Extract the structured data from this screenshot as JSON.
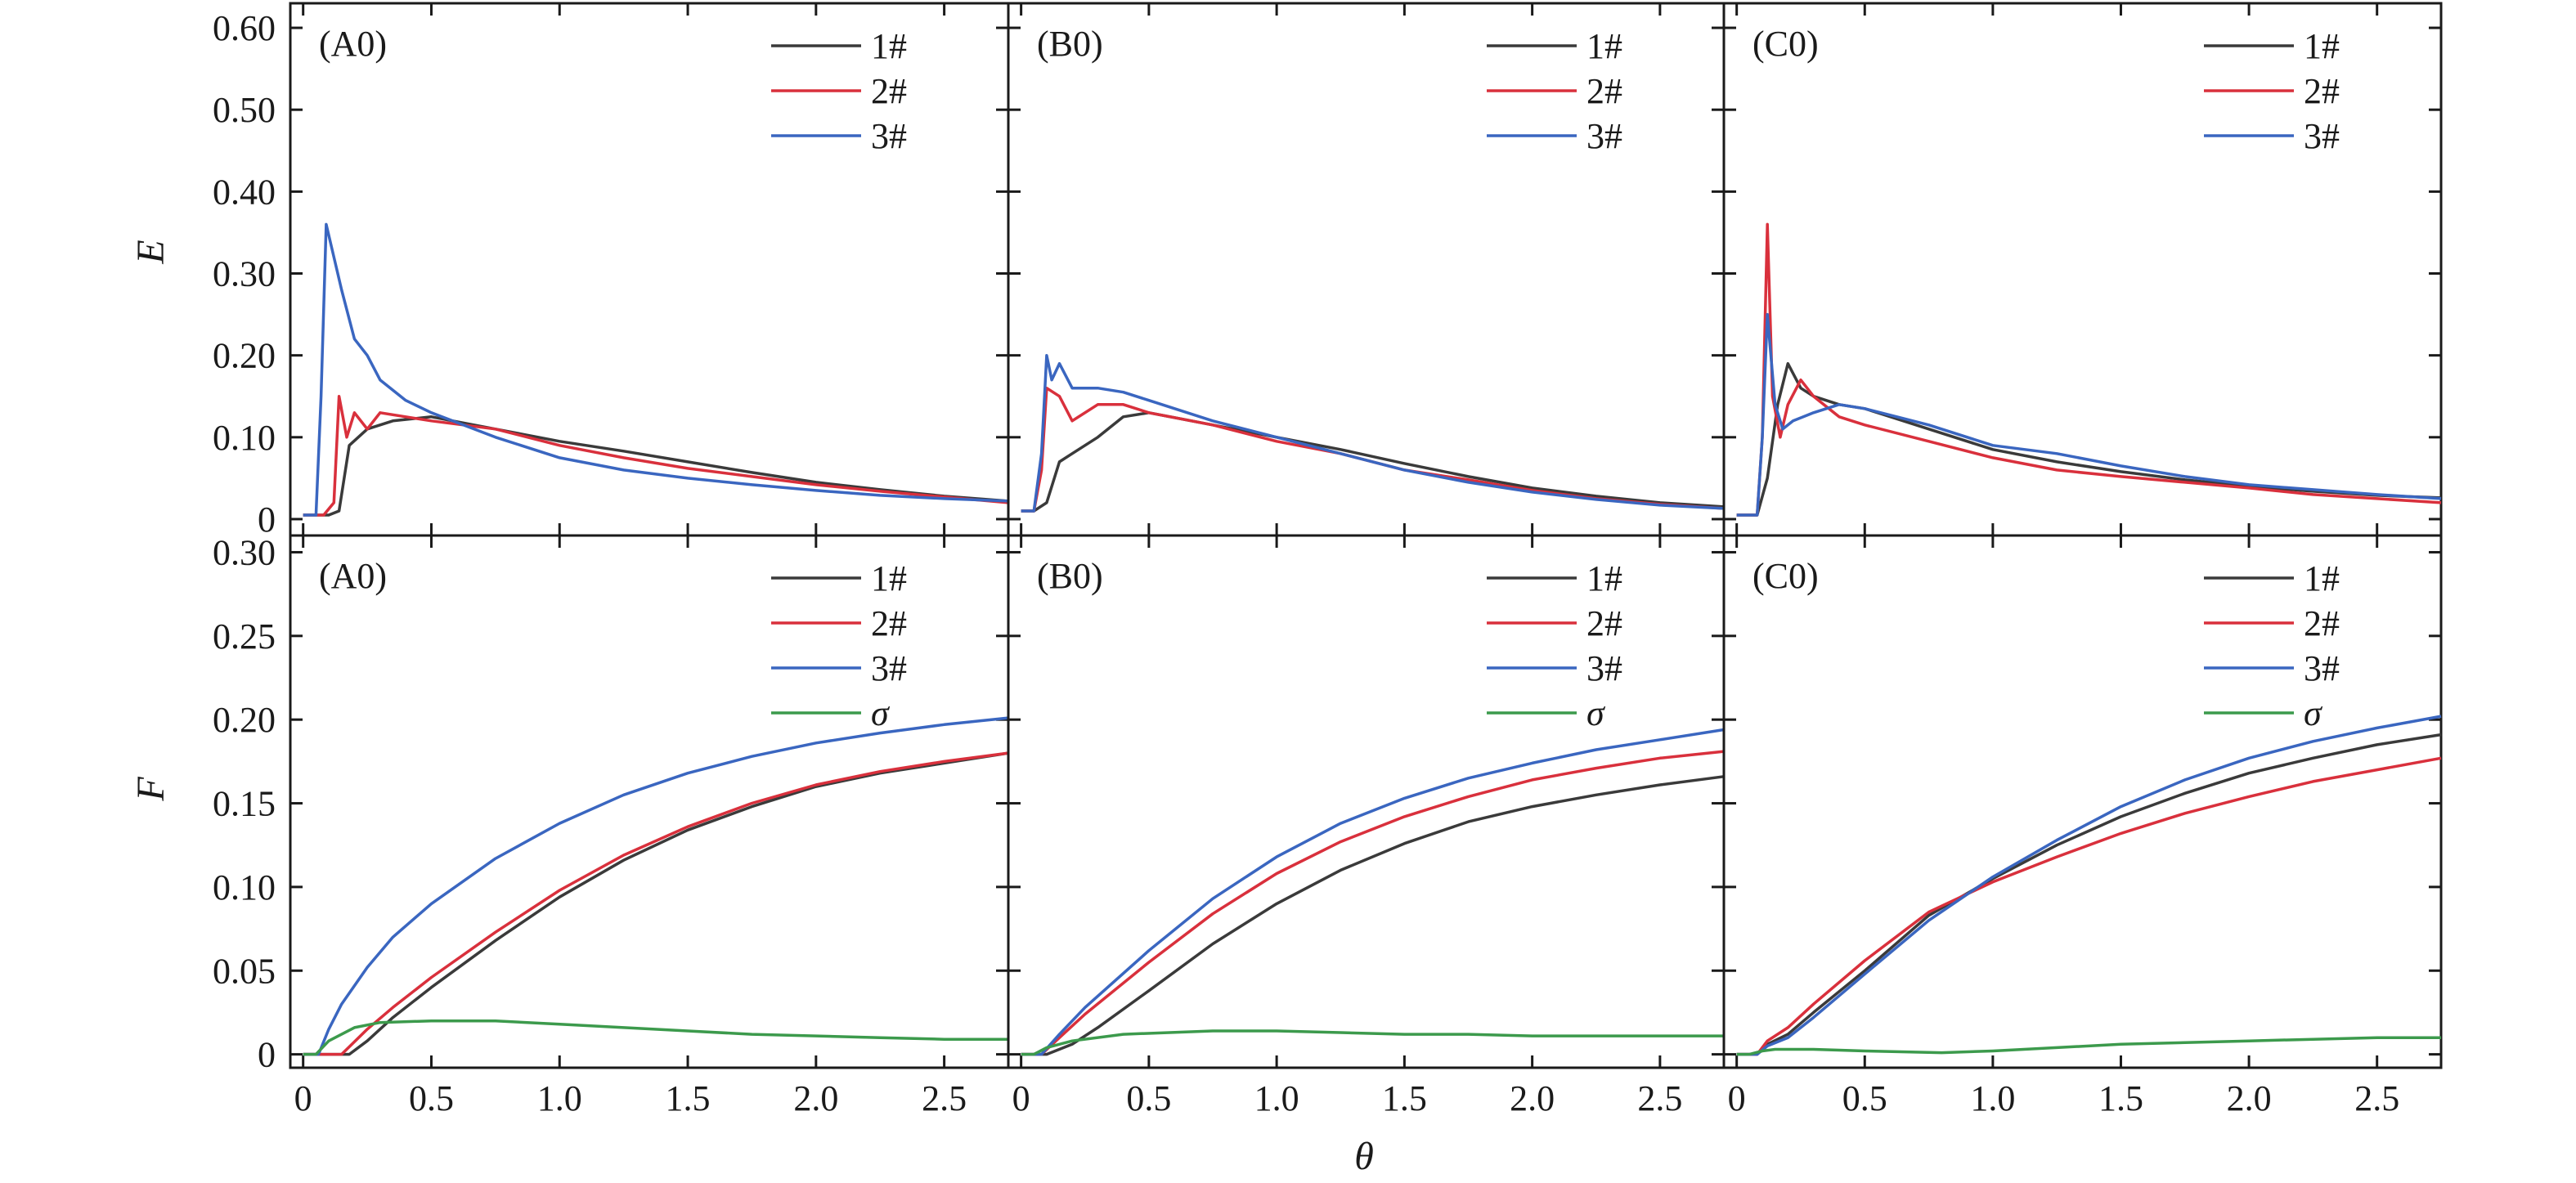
{
  "figure": {
    "xlabel": "θ",
    "row_ylabels": [
      "E",
      "F"
    ]
  },
  "chart_data": [
    {
      "type": "line",
      "panel_label": "(A0)",
      "xlabel": "",
      "ylabel": "E",
      "xlim": [
        -0.05,
        2.75
      ],
      "ylim": [
        -0.02,
        0.63
      ],
      "xticks": [
        0,
        0.5,
        1.0,
        1.5,
        2.0,
        2.5
      ],
      "yticks": [
        0,
        0.1,
        0.2,
        0.3,
        0.4,
        0.5,
        0.6
      ],
      "ytick_labels": [
        "0",
        "0.10",
        "0.20",
        "0.30",
        "0.40",
        "0.50",
        "0.60"
      ],
      "legend_position": "top-right",
      "series": [
        {
          "name": "1#",
          "color": "#3a3a3a",
          "x": [
            0,
            0.1,
            0.14,
            0.18,
            0.25,
            0.35,
            0.5,
            0.75,
            1.0,
            1.25,
            1.5,
            1.75,
            2.0,
            2.25,
            2.5,
            2.75
          ],
          "y": [
            0.005,
            0.005,
            0.01,
            0.09,
            0.11,
            0.12,
            0.125,
            0.11,
            0.095,
            0.083,
            0.07,
            0.057,
            0.045,
            0.036,
            0.028,
            0.022
          ]
        },
        {
          "name": "2#",
          "color": "#d9303c",
          "x": [
            0,
            0.08,
            0.12,
            0.14,
            0.17,
            0.2,
            0.25,
            0.3,
            0.4,
            0.5,
            0.75,
            1.0,
            1.25,
            1.5,
            1.75,
            2.0,
            2.25,
            2.5,
            2.75
          ],
          "y": [
            0.005,
            0.005,
            0.02,
            0.15,
            0.1,
            0.13,
            0.11,
            0.13,
            0.125,
            0.12,
            0.11,
            0.09,
            0.075,
            0.062,
            0.052,
            0.042,
            0.034,
            0.027,
            0.02
          ]
        },
        {
          "name": "3#",
          "color": "#3a66c0",
          "x": [
            0,
            0.05,
            0.07,
            0.09,
            0.12,
            0.15,
            0.2,
            0.25,
            0.3,
            0.4,
            0.5,
            0.75,
            1.0,
            1.25,
            1.5,
            1.75,
            2.0,
            2.25,
            2.5,
            2.75
          ],
          "y": [
            0.005,
            0.005,
            0.15,
            0.36,
            0.32,
            0.28,
            0.22,
            0.2,
            0.17,
            0.145,
            0.13,
            0.1,
            0.075,
            0.06,
            0.05,
            0.042,
            0.035,
            0.029,
            0.025,
            0.022
          ]
        }
      ]
    },
    {
      "type": "line",
      "panel_label": "(B0)",
      "xlabel": "",
      "ylabel": "",
      "xlim": [
        -0.05,
        2.75
      ],
      "ylim": [
        -0.02,
        0.63
      ],
      "xticks": [
        0,
        0.5,
        1.0,
        1.5,
        2.0,
        2.5
      ],
      "legend_position": "top-right",
      "series": [
        {
          "name": "1#",
          "color": "#3a3a3a",
          "x": [
            0,
            0.05,
            0.1,
            0.15,
            0.2,
            0.3,
            0.4,
            0.5,
            0.75,
            1.0,
            1.25,
            1.5,
            1.75,
            2.0,
            2.25,
            2.5,
            2.75
          ],
          "y": [
            0.01,
            0.01,
            0.02,
            0.07,
            0.08,
            0.1,
            0.125,
            0.13,
            0.115,
            0.1,
            0.085,
            0.068,
            0.052,
            0.038,
            0.028,
            0.02,
            0.015
          ]
        },
        {
          "name": "2#",
          "color": "#d9303c",
          "x": [
            0,
            0.05,
            0.08,
            0.1,
            0.15,
            0.2,
            0.3,
            0.4,
            0.5,
            0.75,
            1.0,
            1.25,
            1.5,
            1.75,
            2.0,
            2.25,
            2.5,
            2.75
          ],
          "y": [
            0.01,
            0.01,
            0.06,
            0.16,
            0.15,
            0.12,
            0.14,
            0.14,
            0.13,
            0.115,
            0.095,
            0.08,
            0.06,
            0.048,
            0.035,
            0.025,
            0.018,
            0.013
          ]
        },
        {
          "name": "3#",
          "color": "#3a66c0",
          "x": [
            0,
            0.05,
            0.08,
            0.1,
            0.12,
            0.15,
            0.2,
            0.3,
            0.4,
            0.5,
            0.75,
            1.0,
            1.25,
            1.5,
            1.75,
            2.0,
            2.25,
            2.5,
            2.75
          ],
          "y": [
            0.01,
            0.01,
            0.08,
            0.2,
            0.17,
            0.19,
            0.16,
            0.16,
            0.155,
            0.145,
            0.12,
            0.1,
            0.08,
            0.06,
            0.045,
            0.033,
            0.024,
            0.017,
            0.013
          ]
        }
      ]
    },
    {
      "type": "line",
      "panel_label": "(C0)",
      "xlabel": "",
      "ylabel": "",
      "xlim": [
        -0.05,
        2.75
      ],
      "ylim": [
        -0.02,
        0.63
      ],
      "xticks": [
        0,
        0.5,
        1.0,
        1.5,
        2.0,
        2.5
      ],
      "legend_position": "top-right",
      "series": [
        {
          "name": "1#",
          "color": "#3a3a3a",
          "x": [
            0,
            0.08,
            0.12,
            0.16,
            0.2,
            0.25,
            0.3,
            0.4,
            0.5,
            0.75,
            1.0,
            1.25,
            1.5,
            1.75,
            2.0,
            2.25,
            2.5,
            2.75
          ],
          "y": [
            0.005,
            0.005,
            0.05,
            0.14,
            0.19,
            0.16,
            0.15,
            0.14,
            0.135,
            0.11,
            0.085,
            0.07,
            0.058,
            0.048,
            0.04,
            0.034,
            0.029,
            0.026
          ]
        },
        {
          "name": "2#",
          "color": "#d9303c",
          "x": [
            0,
            0.08,
            0.1,
            0.12,
            0.14,
            0.17,
            0.2,
            0.25,
            0.3,
            0.4,
            0.5,
            0.75,
            1.0,
            1.25,
            1.5,
            1.75,
            2.0,
            2.25,
            2.5,
            2.75
          ],
          "y": [
            0.005,
            0.005,
            0.1,
            0.36,
            0.15,
            0.1,
            0.14,
            0.17,
            0.15,
            0.125,
            0.115,
            0.095,
            0.075,
            0.06,
            0.052,
            0.045,
            0.038,
            0.03,
            0.025,
            0.02
          ]
        },
        {
          "name": "3#",
          "color": "#3a66c0",
          "x": [
            0,
            0.08,
            0.1,
            0.12,
            0.15,
            0.18,
            0.22,
            0.3,
            0.4,
            0.5,
            0.75,
            1.0,
            1.25,
            1.5,
            1.75,
            2.0,
            2.25,
            2.5,
            2.75
          ],
          "y": [
            0.005,
            0.005,
            0.1,
            0.25,
            0.14,
            0.11,
            0.12,
            0.13,
            0.14,
            0.135,
            0.115,
            0.09,
            0.08,
            0.065,
            0.052,
            0.042,
            0.036,
            0.03,
            0.025
          ]
        }
      ]
    },
    {
      "type": "line",
      "panel_label": "(A0)",
      "xlabel": "θ",
      "ylabel": "F",
      "xlim": [
        -0.05,
        2.75
      ],
      "ylim": [
        -0.008,
        0.31
      ],
      "xticks": [
        0,
        0.5,
        1.0,
        1.5,
        2.0,
        2.5
      ],
      "xtick_labels": [
        "0",
        "0.5",
        "1.0",
        "1.5",
        "2.0",
        "2.5"
      ],
      "yticks": [
        0,
        0.05,
        0.1,
        0.15,
        0.2,
        0.25,
        0.3
      ],
      "ytick_labels": [
        "0",
        "0.05",
        "0.10",
        "0.15",
        "0.20",
        "0.25",
        "0.30"
      ],
      "legend_position": "top-right",
      "series": [
        {
          "name": "1#",
          "color": "#3a3a3a",
          "x": [
            0,
            0.1,
            0.18,
            0.25,
            0.35,
            0.5,
            0.75,
            1.0,
            1.25,
            1.5,
            1.75,
            2.0,
            2.25,
            2.5,
            2.75
          ],
          "y": [
            0,
            0,
            0,
            0.008,
            0.022,
            0.04,
            0.068,
            0.094,
            0.116,
            0.134,
            0.148,
            0.16,
            0.168,
            0.174,
            0.18
          ]
        },
        {
          "name": "2#",
          "color": "#d9303c",
          "x": [
            0,
            0.1,
            0.15,
            0.25,
            0.35,
            0.5,
            0.75,
            1.0,
            1.25,
            1.5,
            1.75,
            2.0,
            2.25,
            2.5,
            2.75
          ],
          "y": [
            0,
            0,
            0,
            0.015,
            0.028,
            0.046,
            0.073,
            0.098,
            0.119,
            0.136,
            0.15,
            0.161,
            0.169,
            0.175,
            0.18
          ]
        },
        {
          "name": "3#",
          "color": "#3a66c0",
          "x": [
            0,
            0.06,
            0.1,
            0.15,
            0.25,
            0.35,
            0.5,
            0.75,
            1.0,
            1.25,
            1.5,
            1.75,
            2.0,
            2.25,
            2.5,
            2.75
          ],
          "y": [
            0,
            0,
            0.015,
            0.03,
            0.052,
            0.07,
            0.09,
            0.117,
            0.138,
            0.155,
            0.168,
            0.178,
            0.186,
            0.192,
            0.197,
            0.201
          ]
        },
        {
          "name": "σ",
          "color": "#3c9a4c",
          "x": [
            0,
            0.05,
            0.1,
            0.2,
            0.3,
            0.5,
            0.75,
            1.0,
            1.25,
            1.5,
            1.75,
            2.0,
            2.25,
            2.5,
            2.75
          ],
          "y": [
            0,
            0,
            0.008,
            0.016,
            0.019,
            0.02,
            0.02,
            0.018,
            0.016,
            0.014,
            0.012,
            0.011,
            0.01,
            0.009,
            0.009
          ]
        }
      ]
    },
    {
      "type": "line",
      "panel_label": "(B0)",
      "xlabel": "θ",
      "ylabel": "",
      "xlim": [
        -0.05,
        2.75
      ],
      "ylim": [
        -0.008,
        0.31
      ],
      "xticks": [
        0,
        0.5,
        1.0,
        1.5,
        2.0,
        2.5
      ],
      "xtick_labels": [
        "0",
        "0.5",
        "1.0",
        "1.5",
        "2.0",
        "2.5"
      ],
      "legend_position": "top-right",
      "series": [
        {
          "name": "1#",
          "color": "#3a3a3a",
          "x": [
            0,
            0.1,
            0.2,
            0.3,
            0.5,
            0.75,
            1.0,
            1.25,
            1.5,
            1.75,
            2.0,
            2.25,
            2.5,
            2.75
          ],
          "y": [
            0,
            0,
            0.006,
            0.016,
            0.038,
            0.066,
            0.09,
            0.11,
            0.126,
            0.139,
            0.148,
            0.155,
            0.161,
            0.166
          ]
        },
        {
          "name": "2#",
          "color": "#d9303c",
          "x": [
            0,
            0.08,
            0.15,
            0.25,
            0.5,
            0.75,
            1.0,
            1.25,
            1.5,
            1.75,
            2.0,
            2.25,
            2.5,
            2.75
          ],
          "y": [
            0,
            0,
            0.01,
            0.024,
            0.055,
            0.084,
            0.108,
            0.127,
            0.142,
            0.154,
            0.164,
            0.171,
            0.177,
            0.181
          ]
        },
        {
          "name": "3#",
          "color": "#3a66c0",
          "x": [
            0,
            0.08,
            0.15,
            0.25,
            0.5,
            0.75,
            1.0,
            1.25,
            1.5,
            1.75,
            2.0,
            2.25,
            2.5,
            2.75
          ],
          "y": [
            0,
            0,
            0.012,
            0.028,
            0.062,
            0.093,
            0.118,
            0.138,
            0.153,
            0.165,
            0.174,
            0.182,
            0.188,
            0.194
          ]
        },
        {
          "name": "σ",
          "color": "#3c9a4c",
          "x": [
            0,
            0.05,
            0.1,
            0.2,
            0.4,
            0.75,
            1.0,
            1.25,
            1.5,
            1.75,
            2.0,
            2.25,
            2.5,
            2.75
          ],
          "y": [
            0,
            0,
            0.004,
            0.008,
            0.012,
            0.014,
            0.014,
            0.013,
            0.012,
            0.012,
            0.011,
            0.011,
            0.011,
            0.011
          ]
        }
      ]
    },
    {
      "type": "line",
      "panel_label": "(C0)",
      "xlabel": "θ",
      "ylabel": "",
      "xlim": [
        -0.05,
        2.75
      ],
      "ylim": [
        -0.008,
        0.31
      ],
      "xticks": [
        0,
        0.5,
        1.0,
        1.5,
        2.0,
        2.5
      ],
      "xtick_labels": [
        "0",
        "0.5",
        "1.0",
        "1.5",
        "2.0",
        "2.5"
      ],
      "legend_position": "top-right",
      "series": [
        {
          "name": "1#",
          "color": "#3a3a3a",
          "x": [
            0,
            0.08,
            0.12,
            0.2,
            0.3,
            0.5,
            0.75,
            1.0,
            1.25,
            1.5,
            1.75,
            2.0,
            2.25,
            2.5,
            2.75
          ],
          "y": [
            0,
            0,
            0.006,
            0.012,
            0.025,
            0.05,
            0.083,
            0.105,
            0.125,
            0.142,
            0.156,
            0.168,
            0.177,
            0.185,
            0.191
          ]
        },
        {
          "name": "2#",
          "color": "#d9303c",
          "x": [
            0,
            0.08,
            0.12,
            0.2,
            0.3,
            0.5,
            0.75,
            1.0,
            1.25,
            1.5,
            1.75,
            2.0,
            2.25,
            2.5,
            2.75
          ],
          "y": [
            0,
            0,
            0.008,
            0.016,
            0.03,
            0.056,
            0.085,
            0.103,
            0.118,
            0.132,
            0.144,
            0.154,
            0.163,
            0.17,
            0.177
          ]
        },
        {
          "name": "3#",
          "color": "#3a66c0",
          "x": [
            0,
            0.08,
            0.12,
            0.2,
            0.3,
            0.5,
            0.75,
            1.0,
            1.25,
            1.5,
            1.75,
            2.0,
            2.25,
            2.5,
            2.75
          ],
          "y": [
            0,
            0,
            0.005,
            0.01,
            0.022,
            0.048,
            0.08,
            0.106,
            0.128,
            0.148,
            0.164,
            0.177,
            0.187,
            0.195,
            0.202
          ]
        },
        {
          "name": "σ",
          "color": "#3c9a4c",
          "x": [
            0,
            0.05,
            0.1,
            0.15,
            0.3,
            0.5,
            0.8,
            1.0,
            1.25,
            1.5,
            1.75,
            2.0,
            2.25,
            2.5,
            2.75
          ],
          "y": [
            0,
            0,
            0.002,
            0.003,
            0.003,
            0.002,
            0.001,
            0.002,
            0.004,
            0.006,
            0.007,
            0.008,
            0.009,
            0.01,
            0.01
          ]
        }
      ]
    }
  ]
}
